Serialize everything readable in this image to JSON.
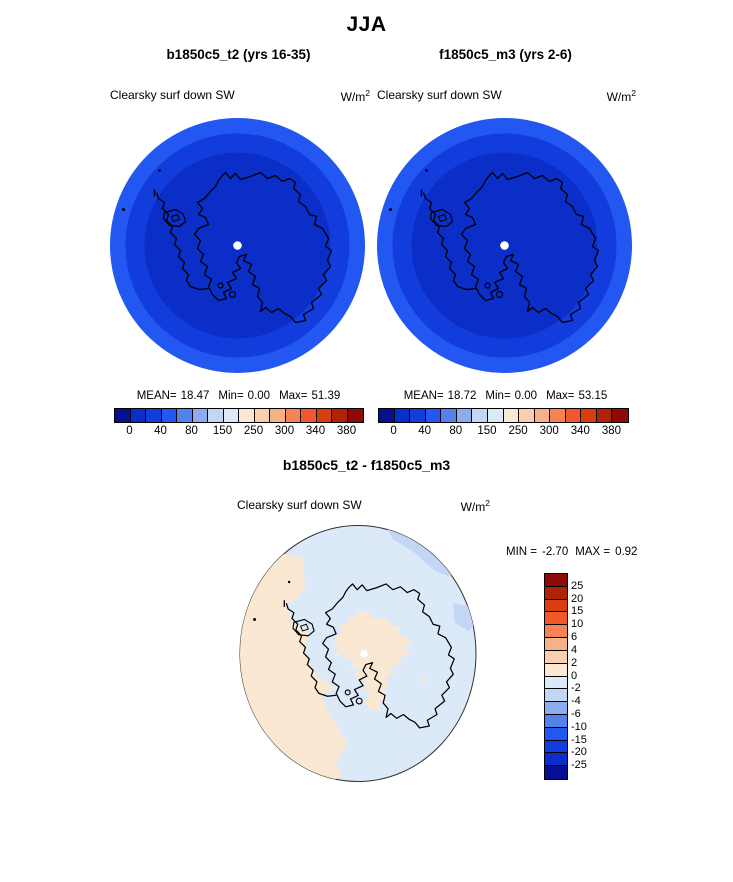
{
  "page_title": "JJA",
  "top_panels": [
    {
      "title": "b1850c5_t2 (yrs 16-35)",
      "field": "Clearsky surf down SW",
      "units_base": "W/m",
      "units_exp": "2",
      "stats": {
        "mean_label": "MEAN=",
        "mean": "18.47",
        "min_label": "Min=",
        "min": "0.00",
        "max_label": "Max=",
        "max": "51.39"
      },
      "ticks": [
        "0",
        "40",
        "80",
        "150",
        "250",
        "300",
        "340",
        "380"
      ]
    },
    {
      "title": "f1850c5_m3 (yrs 2-6)",
      "field": "Clearsky surf down SW",
      "units_base": "W/m",
      "units_exp": "2",
      "stats": {
        "mean_label": "MEAN=",
        "mean": "18.72",
        "min_label": "Min=",
        "min": "0.00",
        "max_label": "Max=",
        "max": "53.15"
      },
      "ticks": [
        "0",
        "40",
        "80",
        "150",
        "250",
        "300",
        "340",
        "380"
      ]
    }
  ],
  "diff_panel": {
    "title": "b1850c5_t2 - f1850c5_m3",
    "field": "Clearsky surf down SW",
    "units_base": "W/m",
    "units_exp": "2",
    "stats": {
      "min_label": "MIN =",
      "min": "-2.70",
      "max_label": "MAX =",
      "max": "0.92"
    },
    "ticks": [
      "25",
      "20",
      "15",
      "10",
      "6",
      "4",
      "2",
      "0",
      "-2",
      "-4",
      "-6",
      "-10",
      "-15",
      "-20",
      "-25"
    ]
  },
  "palette": [
    "#070F92",
    "#0C2EC8",
    "#123CDC",
    "#2257F2",
    "#5581EA",
    "#8BACEE",
    "#C3D6F3",
    "#DCE9F8",
    "#FBE8D2",
    "#F9CFB2",
    "#F6B189",
    "#F58356",
    "#F1582B",
    "#DC3D10",
    "#B02309",
    "#8F0A06"
  ],
  "map_colors": {
    "top_outer": "#2257F2",
    "top_middle": "#123CDC",
    "top_inner": "#0C2EC8",
    "diff_background": "#DCE9F8",
    "diff_positive": "#FBE8D2",
    "diff_negative2": "#C3D6F3",
    "coast": "#000000",
    "pole_dot": "#FFFFFF",
    "diff_outline": "#333333"
  },
  "chart_data": [
    {
      "type": "heatmap",
      "subtype": "south-polar-stereographic-map",
      "season": "JJA",
      "title": "b1850c5_t2 (yrs 16-35)",
      "variable": "Clearsky surf down SW",
      "units": "W/m^2",
      "stats": {
        "mean": 18.47,
        "min": 0.0,
        "max": 51.39
      },
      "colorbar_labeled_ticks": [
        0,
        40,
        80,
        150,
        250,
        300,
        340,
        380
      ],
      "colorbar_cells": 16,
      "depicted_pattern": [
        {
          "value_band": "0-20",
          "color": "#0C2EC8",
          "region": "inner disc covering Antarctica and pole"
        },
        {
          "value_band": "20-40",
          "color": "#123CDC",
          "region": "middle annulus"
        },
        {
          "value_band": "40-60",
          "color": "#2257F2",
          "region": "outer annulus at map edge"
        }
      ]
    },
    {
      "type": "heatmap",
      "subtype": "south-polar-stereographic-map",
      "season": "JJA",
      "title": "f1850c5_m3 (yrs 2-6)",
      "variable": "Clearsky surf down SW",
      "units": "W/m^2",
      "stats": {
        "mean": 18.72,
        "min": 0.0,
        "max": 53.15
      },
      "colorbar_labeled_ticks": [
        0,
        40,
        80,
        150,
        250,
        300,
        340,
        380
      ],
      "colorbar_cells": 16,
      "depicted_pattern": [
        {
          "value_band": "0-20",
          "color": "#0C2EC8",
          "region": "inner disc covering Antarctica and pole"
        },
        {
          "value_band": "20-40",
          "color": "#123CDC",
          "region": "middle annulus"
        },
        {
          "value_band": "40-60",
          "color": "#2257F2",
          "region": "outer annulus at map edge"
        }
      ]
    },
    {
      "type": "heatmap",
      "subtype": "south-polar-stereographic-map",
      "season": "JJA",
      "title": "b1850c5_t2 - f1850c5_m3",
      "variable": "Clearsky surf down SW",
      "units": "W/m^2",
      "stats": {
        "min": -2.7,
        "max": 0.92
      },
      "colorbar_labeled_ticks": [
        25,
        20,
        15,
        10,
        6,
        4,
        2,
        0,
        -2,
        -4,
        -6,
        -10,
        -15,
        -20,
        -25
      ],
      "colorbar_cells": 16,
      "depicted_pattern": [
        {
          "value_band": "-2-0",
          "color": "#DCE9F8",
          "region": "background over most of the map"
        },
        {
          "value_band": "0-2",
          "color": "#FBE8D2",
          "region": "western sector, pole-centered blob, bottom-left tongue"
        },
        {
          "value_band": "-4--2",
          "color": "#C3D6F3",
          "region": "patches along the north-east and east edge"
        }
      ]
    }
  ]
}
